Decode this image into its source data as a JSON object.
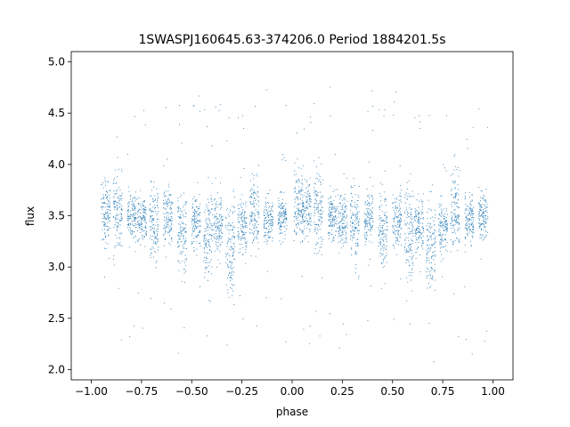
{
  "chart_data": {
    "type": "scatter",
    "title": "1SWASPJ160645.63-374206.0 Period 1884201.5s",
    "xlabel": "phase",
    "ylabel": "flux",
    "xlim": [
      -1.0,
      1.0
    ],
    "ylim": [
      2.0,
      5.0
    ],
    "xticks": [
      -1.0,
      -0.75,
      -0.5,
      -0.25,
      0.0,
      0.25,
      0.5,
      0.75,
      1.0
    ],
    "xtick_labels": [
      "−1.00",
      "−0.75",
      "−0.50",
      "−0.25",
      "0.00",
      "0.25",
      "0.50",
      "0.75",
      "1.00"
    ],
    "yticks": [
      2.0,
      2.5,
      3.0,
      3.5,
      4.0,
      4.5,
      5.0
    ],
    "ytick_labels": [
      "2.0",
      "2.5",
      "3.0",
      "3.5",
      "4.0",
      "4.5",
      "5.0"
    ],
    "grid": false,
    "legend": "none",
    "marker_color": "#1f77b4",
    "series": [
      {
        "name": "",
        "description_clusters": [
          {
            "x": -0.93,
            "y_center": 3.55,
            "spread": 0.25
          },
          {
            "x": -0.87,
            "y_center": 3.55,
            "spread": 0.35
          },
          {
            "x": -0.8,
            "y_center": 3.5,
            "spread": 0.2
          },
          {
            "x": -0.75,
            "y_center": 3.45,
            "spread": 0.22
          },
          {
            "x": -0.69,
            "y_center": 3.45,
            "spread": 0.35
          },
          {
            "x": -0.62,
            "y_center": 3.5,
            "spread": 0.25
          },
          {
            "x": -0.55,
            "y_center": 3.35,
            "spread": 0.35
          },
          {
            "x": -0.48,
            "y_center": 3.45,
            "spread": 0.25
          },
          {
            "x": -0.42,
            "y_center": 3.35,
            "spread": 0.4
          },
          {
            "x": -0.37,
            "y_center": 3.4,
            "spread": 0.25
          },
          {
            "x": -0.31,
            "y_center": 3.2,
            "spread": 0.4
          },
          {
            "x": -0.25,
            "y_center": 3.4,
            "spread": 0.25
          },
          {
            "x": -0.19,
            "y_center": 3.55,
            "spread": 0.35
          },
          {
            "x": -0.12,
            "y_center": 3.45,
            "spread": 0.2
          },
          {
            "x": -0.05,
            "y_center": 3.5,
            "spread": 0.2
          },
          {
            "x": 0.03,
            "y_center": 3.6,
            "spread": 0.3
          },
          {
            "x": 0.07,
            "y_center": 3.55,
            "spread": 0.25
          },
          {
            "x": 0.13,
            "y_center": 3.55,
            "spread": 0.35
          },
          {
            "x": 0.2,
            "y_center": 3.5,
            "spread": 0.2
          },
          {
            "x": 0.25,
            "y_center": 3.45,
            "spread": 0.22
          },
          {
            "x": 0.31,
            "y_center": 3.45,
            "spread": 0.35
          },
          {
            "x": 0.38,
            "y_center": 3.5,
            "spread": 0.25
          },
          {
            "x": 0.45,
            "y_center": 3.35,
            "spread": 0.35
          },
          {
            "x": 0.52,
            "y_center": 3.45,
            "spread": 0.25
          },
          {
            "x": 0.58,
            "y_center": 3.35,
            "spread": 0.4
          },
          {
            "x": 0.63,
            "y_center": 3.4,
            "spread": 0.25
          },
          {
            "x": 0.69,
            "y_center": 3.2,
            "spread": 0.4
          },
          {
            "x": 0.75,
            "y_center": 3.4,
            "spread": 0.25
          },
          {
            "x": 0.81,
            "y_center": 3.55,
            "spread": 0.35
          },
          {
            "x": 0.88,
            "y_center": 3.45,
            "spread": 0.2
          },
          {
            "x": 0.95,
            "y_center": 3.5,
            "spread": 0.2
          }
        ]
      }
    ]
  }
}
